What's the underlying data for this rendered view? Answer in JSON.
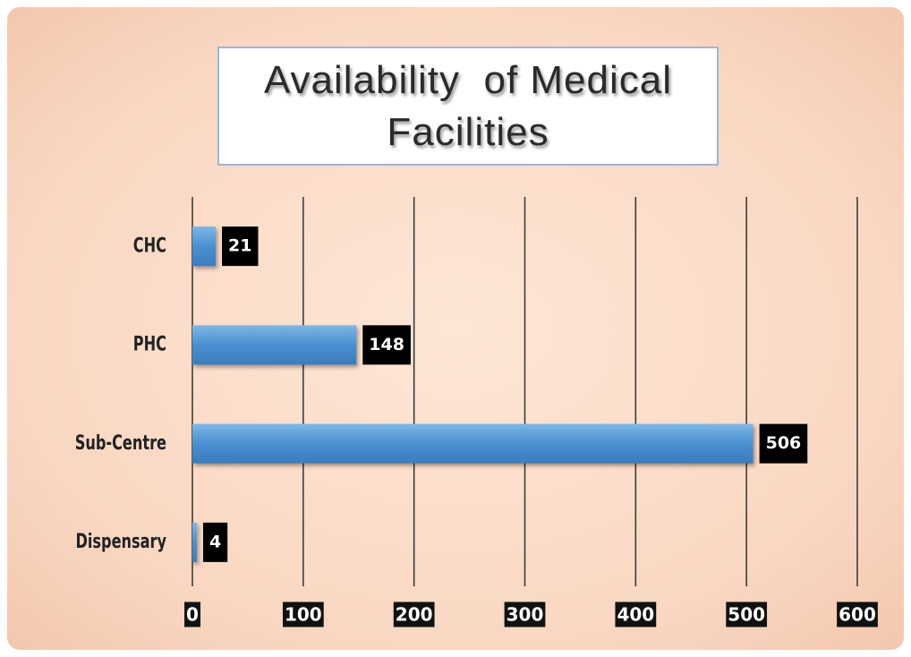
{
  "chart_data": {
    "type": "hbar",
    "title": "Availability  of Medical Facilities",
    "categories": [
      "CHC",
      "PHC",
      "Sub-Centre",
      "Dispensary"
    ],
    "values": [
      21,
      148,
      506,
      4
    ],
    "color": "#4a90d0",
    "xlim": [
      0,
      600
    ],
    "xticks": [
      0,
      100,
      200,
      300,
      400,
      500,
      600
    ],
    "grid": true
  }
}
